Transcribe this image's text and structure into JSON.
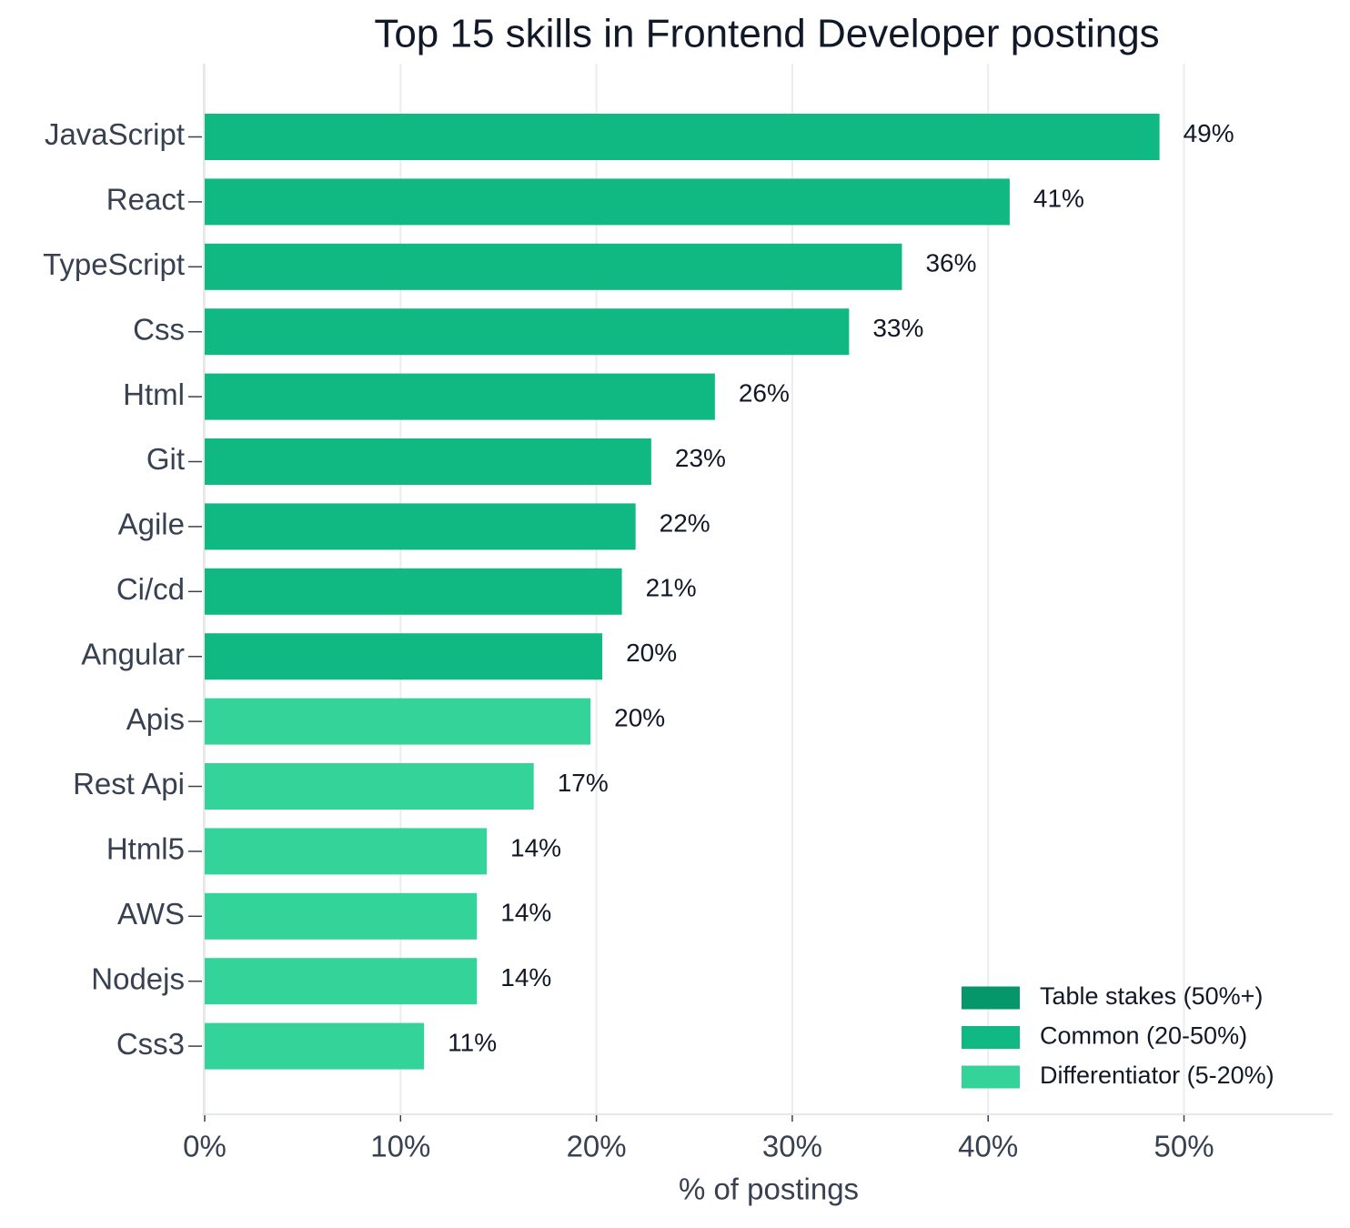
{
  "chart_data": {
    "type": "barh",
    "title": "Top 15 skills in Frontend Developer postings",
    "x_label": "% of postings",
    "categories": [
      "JavaScript",
      "React",
      "TypeScript",
      "Css",
      "Html",
      "Git",
      "Agile",
      "Ci/cd",
      "Angular",
      "Apis",
      "Rest Api",
      "Html5",
      "AWS",
      "Nodejs",
      "Css3"
    ],
    "series": [
      {
        "name": "Table stakes (50%+)",
        "color": "#059669",
        "values": [
          null,
          null,
          null,
          null,
          null,
          null,
          null,
          null,
          null,
          null,
          null,
          null,
          null,
          null,
          null
        ],
        "value_labels": [
          null,
          null,
          null,
          null,
          null,
          null,
          null,
          null,
          null,
          null,
          null,
          null,
          null,
          null,
          null
        ]
      },
      {
        "name": "Common (20-50%)",
        "color": "#10b981",
        "values": [
          48.75,
          41.1,
          35.6,
          32.9,
          26.05,
          22.8,
          22.0,
          21.3,
          20.3,
          null,
          null,
          null,
          null,
          null,
          null
        ],
        "value_labels": [
          "49%",
          "41%",
          "36%",
          "33%",
          "26%",
          "23%",
          "22%",
          "21%",
          "20%",
          null,
          null,
          null,
          null,
          null,
          null
        ]
      },
      {
        "name": "Differentiator (5-20%)",
        "color": "#34d399",
        "values": [
          null,
          null,
          null,
          null,
          null,
          null,
          null,
          null,
          null,
          19.7,
          16.8,
          14.4,
          13.9,
          13.9,
          11.2
        ],
        "value_labels": [
          null,
          null,
          null,
          null,
          null,
          null,
          null,
          null,
          null,
          "20%",
          "17%",
          "14%",
          "14%",
          "14%",
          "11%"
        ]
      }
    ],
    "xlim": [
      0,
      57.5
    ],
    "xticks": [
      {
        "value": 0,
        "label": "0%"
      },
      {
        "value": 10,
        "label": "10%"
      },
      {
        "value": 20,
        "label": "20%"
      },
      {
        "value": 30,
        "label": "30%"
      },
      {
        "value": 40,
        "label": "40%"
      },
      {
        "value": 50,
        "label": "50%"
      }
    ],
    "grid": true,
    "legend": "lower right"
  }
}
